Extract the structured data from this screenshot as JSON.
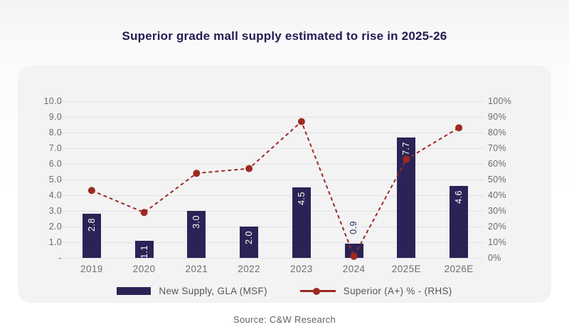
{
  "title": "Superior grade mall supply estimated to rise in 2025-26",
  "source": "Source: C&W Research",
  "colors": {
    "bar": "#2a2456",
    "line": "#9e2a22",
    "title_text": "#211c52",
    "card_background": "#f3f3f4",
    "gridline": "#e2e2e5",
    "axis_text": "#6b6b6f"
  },
  "chart_data": {
    "type": "combo",
    "title": "Superior grade mall supply estimated to rise in 2025-26",
    "categories": [
      "2019",
      "2020",
      "2021",
      "2022",
      "2023",
      "2024",
      "2025E",
      "2026E"
    ],
    "series": [
      {
        "name": "New Supply, GLA (MSF)",
        "type": "bar",
        "axis": "left",
        "values": [
          2.8,
          1.1,
          3.0,
          2.0,
          4.5,
          0.9,
          7.7,
          4.6
        ],
        "data_labels": [
          "2.8",
          "1.1",
          "3.0",
          "2.0",
          "4.5",
          "0.9",
          "7.7",
          "4.6"
        ],
        "color": "#2a2456"
      },
      {
        "name": "Superior (A+) % - (RHS)",
        "type": "line",
        "axis": "right",
        "style": "dashed",
        "values": [
          43,
          29,
          54,
          57,
          87,
          1,
          63,
          83
        ],
        "color": "#9e2a22"
      }
    ],
    "left_axis": {
      "min": 0,
      "max": 10,
      "ticks": [
        "10.0",
        "9.0",
        "8.0",
        "7.0",
        "6.0",
        "5.0",
        "4.0",
        "3.0",
        "2.0",
        "1.0",
        "-"
      ]
    },
    "right_axis": {
      "min": 0,
      "max": 100,
      "ticks": [
        "100%",
        "90%",
        "80%",
        "70%",
        "60%",
        "50%",
        "40%",
        "30%",
        "20%",
        "10%",
        "0%"
      ]
    },
    "grid": true,
    "legend_position": "bottom"
  }
}
